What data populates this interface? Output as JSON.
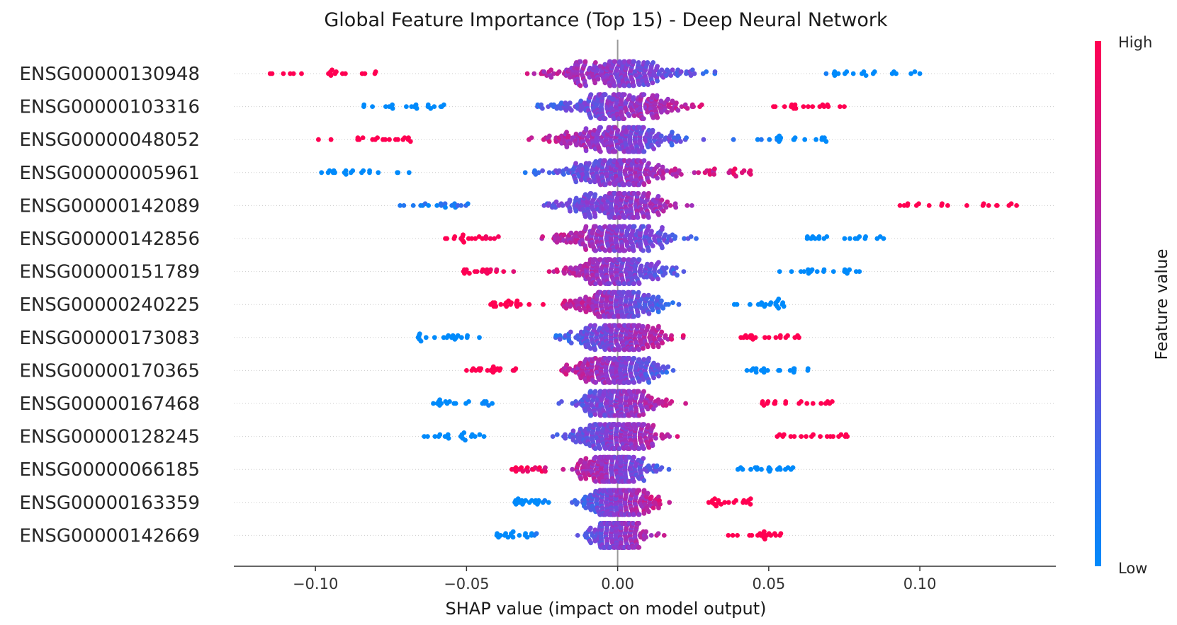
{
  "chart_data": {
    "type": "scatter",
    "subtype": "shap_beeswarm",
    "title": "Global Feature Importance (Top 15) - Deep Neural Network",
    "xlabel": "SHAP value (impact on model output)",
    "xlim": [
      -0.127,
      0.145
    ],
    "xticks": [
      -0.1,
      -0.05,
      0.0,
      0.05,
      0.1
    ],
    "xtick_labels": [
      "−0.10",
      "−0.05",
      "0.00",
      "0.05",
      "0.10"
    ],
    "zero_line": true,
    "row_gridlines": "dotted",
    "colorbar": {
      "title": "Feature value",
      "high_label": "High",
      "low_label": "Low",
      "low_color": "#008afb",
      "mid_color": "#8b3bd3",
      "high_color": "#ff0052"
    },
    "features": [
      {
        "name": "ENSG00000130948",
        "min": -0.115,
        "max": 0.1,
        "direction": -1,
        "spread": 0.03
      },
      {
        "name": "ENSG00000103316",
        "min": -0.084,
        "max": 0.075,
        "direction": 1,
        "spread": 0.028
      },
      {
        "name": "ENSG00000048052",
        "min": -0.099,
        "max": 0.069,
        "direction": -1,
        "spread": 0.028
      },
      {
        "name": "ENSG00000005961",
        "min": -0.098,
        "max": 0.044,
        "direction": 1,
        "spread": 0.026
      },
      {
        "name": "ENSG00000142089",
        "min": -0.072,
        "max": 0.132,
        "direction": 1,
        "spread": 0.025
      },
      {
        "name": "ENSG00000142856",
        "min": -0.057,
        "max": 0.088,
        "direction": -1,
        "spread": 0.025
      },
      {
        "name": "ENSG00000151789",
        "min": -0.051,
        "max": 0.08,
        "direction": -1,
        "spread": 0.022
      },
      {
        "name": "ENSG00000240225",
        "min": -0.042,
        "max": 0.055,
        "direction": -1,
        "spread": 0.02
      },
      {
        "name": "ENSG00000173083",
        "min": -0.066,
        "max": 0.06,
        "direction": 1,
        "spread": 0.022
      },
      {
        "name": "ENSG00000170365",
        "min": -0.05,
        "max": 0.063,
        "direction": -1,
        "spread": 0.02
      },
      {
        "name": "ENSG00000167468",
        "min": -0.061,
        "max": 0.071,
        "direction": 1,
        "spread": 0.018
      },
      {
        "name": "ENSG00000128245",
        "min": -0.064,
        "max": 0.076,
        "direction": 1,
        "spread": 0.02
      },
      {
        "name": "ENSG00000066185",
        "min": -0.035,
        "max": 0.058,
        "direction": -1,
        "spread": 0.017
      },
      {
        "name": "ENSG00000163359",
        "min": -0.034,
        "max": 0.044,
        "direction": 1,
        "spread": 0.016
      },
      {
        "name": "ENSG00000142669",
        "min": -0.04,
        "max": 0.054,
        "direction": 1,
        "spread": 0.013
      }
    ]
  }
}
